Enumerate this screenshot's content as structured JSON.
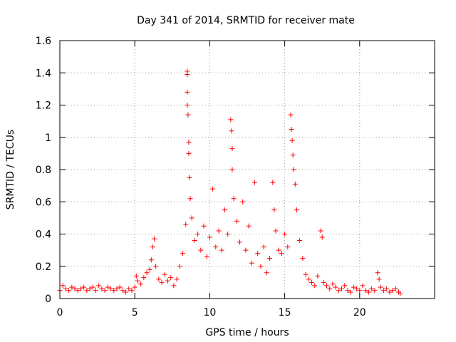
{
  "chart_data": {
    "type": "scatter",
    "title": "Day 341 of 2014, SRMTID for receiver mate",
    "xlabel": "GPS time / hours",
    "ylabel": "SRMTID / TECUs",
    "xlim": [
      0,
      25
    ],
    "ylim": [
      0,
      1.6
    ],
    "grid": true,
    "marker": "+",
    "color": "#ff0000",
    "xticks": [
      0,
      5,
      10,
      15,
      20
    ],
    "xtick_labels": [
      "0",
      "5",
      "10",
      "15",
      "20"
    ],
    "yticks": [
      0,
      0.2,
      0.4,
      0.6,
      0.8,
      1.0,
      1.2,
      1.4,
      1.6
    ],
    "ytick_labels": [
      "0",
      "0.2",
      "0.4",
      "0.6",
      "0.8",
      "1",
      "1.2",
      "1.4",
      "1.6"
    ],
    "series": [
      {
        "name": "SRMTID",
        "x": [
          0.0,
          0.2,
          0.4,
          0.6,
          0.8,
          1.0,
          1.2,
          1.4,
          1.6,
          1.8,
          2.0,
          2.2,
          2.4,
          2.6,
          2.8,
          3.0,
          3.2,
          3.4,
          3.6,
          3.8,
          4.0,
          4.2,
          4.4,
          4.6,
          4.8,
          5.0,
          5.1,
          5.2,
          5.4,
          5.6,
          5.8,
          6.0,
          6.1,
          6.2,
          6.3,
          6.4,
          6.6,
          6.8,
          7.0,
          7.2,
          7.4,
          7.6,
          7.8,
          8.0,
          8.2,
          8.4,
          8.5,
          8.5,
          8.5,
          8.5,
          8.55,
          8.6,
          8.6,
          8.65,
          8.7,
          8.8,
          9.0,
          9.2,
          9.4,
          9.6,
          9.8,
          10.0,
          10.2,
          10.4,
          10.6,
          10.8,
          11.0,
          11.2,
          11.4,
          11.45,
          11.5,
          11.5,
          11.6,
          11.8,
          12.0,
          12.2,
          12.4,
          12.6,
          12.8,
          13.0,
          13.2,
          13.4,
          13.6,
          13.8,
          14.0,
          14.2,
          14.3,
          14.4,
          14.6,
          14.8,
          15.0,
          15.2,
          15.4,
          15.45,
          15.5,
          15.55,
          15.6,
          15.7,
          15.8,
          16.0,
          16.2,
          16.4,
          16.6,
          16.8,
          17.0,
          17.2,
          17.4,
          17.5,
          17.6,
          17.8,
          18.0,
          18.2,
          18.4,
          18.6,
          18.8,
          19.0,
          19.2,
          19.4,
          19.6,
          19.8,
          20.0,
          20.2,
          20.4,
          20.6,
          20.8,
          21.0,
          21.2,
          21.3,
          21.4,
          21.6,
          21.8,
          22.0,
          22.2,
          22.4,
          22.6,
          22.7
        ],
        "y": [
          0.05,
          0.08,
          0.06,
          0.05,
          0.07,
          0.06,
          0.05,
          0.06,
          0.07,
          0.05,
          0.06,
          0.07,
          0.05,
          0.08,
          0.06,
          0.05,
          0.07,
          0.06,
          0.05,
          0.06,
          0.07,
          0.05,
          0.04,
          0.06,
          0.05,
          0.07,
          0.14,
          0.11,
          0.09,
          0.13,
          0.16,
          0.18,
          0.24,
          0.32,
          0.37,
          0.2,
          0.12,
          0.1,
          0.15,
          0.11,
          0.13,
          0.08,
          0.12,
          0.2,
          0.28,
          0.46,
          1.41,
          1.39,
          1.28,
          1.2,
          1.14,
          0.97,
          0.9,
          0.75,
          0.62,
          0.5,
          0.36,
          0.4,
          0.3,
          0.45,
          0.26,
          0.38,
          0.68,
          0.32,
          0.42,
          0.3,
          0.55,
          0.4,
          1.11,
          1.04,
          0.93,
          0.8,
          0.62,
          0.48,
          0.35,
          0.6,
          0.3,
          0.45,
          0.22,
          0.72,
          0.28,
          0.2,
          0.32,
          0.16,
          0.25,
          0.72,
          0.55,
          0.42,
          0.3,
          0.28,
          0.4,
          0.32,
          1.14,
          1.05,
          0.98,
          0.89,
          0.8,
          0.71,
          0.55,
          0.36,
          0.25,
          0.15,
          0.12,
          0.1,
          0.08,
          0.14,
          0.42,
          0.38,
          0.1,
          0.08,
          0.06,
          0.09,
          0.07,
          0.05,
          0.06,
          0.08,
          0.05,
          0.04,
          0.07,
          0.06,
          0.05,
          0.08,
          0.05,
          0.04,
          0.06,
          0.05,
          0.16,
          0.12,
          0.07,
          0.05,
          0.06,
          0.04,
          0.05,
          0.06,
          0.04,
          0.03
        ]
      }
    ]
  }
}
